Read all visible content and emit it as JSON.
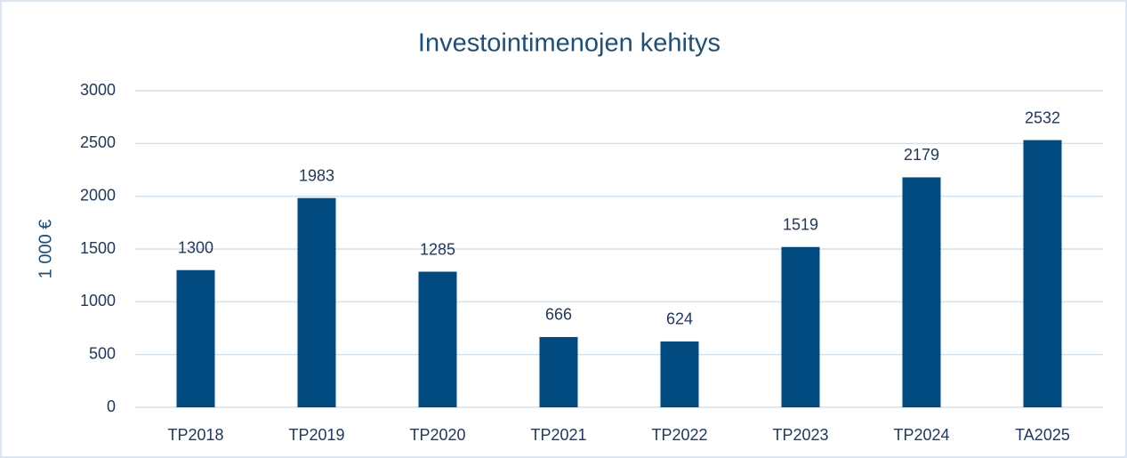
{
  "chart_data": {
    "type": "bar",
    "title": "Investointimenojen kehitys",
    "y_label": "1 000 €",
    "categories": [
      "TP2018",
      "TP2019",
      "TP2020",
      "TP2021",
      "TP2022",
      "TP2023",
      "TP2024",
      "TA2025"
    ],
    "values": [
      1300,
      1983,
      1285,
      666,
      624,
      1519,
      2179,
      2532
    ],
    "color": "#004a7f",
    "ylim": [
      0,
      3000
    ],
    "yticks": [
      0,
      500,
      1000,
      1500,
      2000,
      2500,
      3000
    ],
    "grid": true
  }
}
